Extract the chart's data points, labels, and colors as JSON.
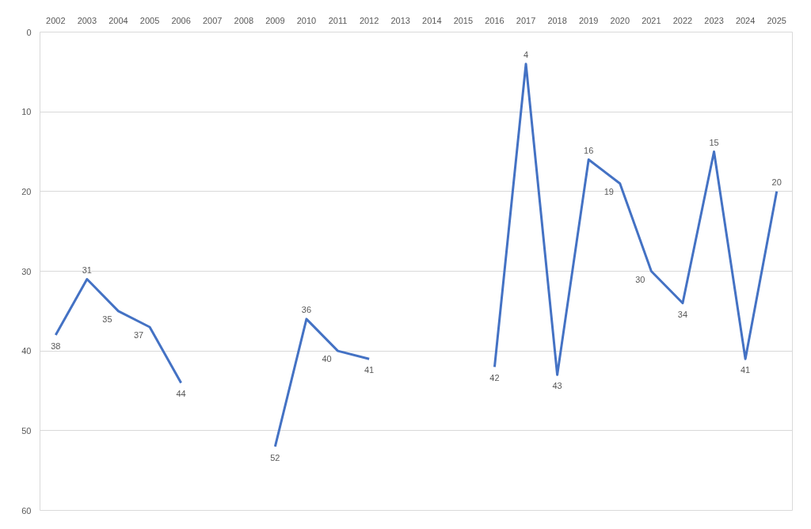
{
  "chart_data": {
    "type": "line",
    "categories": [
      "2002",
      "2003",
      "2004",
      "2005",
      "2006",
      "2007",
      "2008",
      "2009",
      "2010",
      "2011",
      "2012",
      "2013",
      "2014",
      "2015",
      "2016",
      "2017",
      "2018",
      "2019",
      "2020",
      "2021",
      "2022",
      "2023",
      "2024",
      "2025"
    ],
    "series": [
      {
        "color": "#4472c4",
        "values": [
          38,
          31,
          35,
          37,
          44,
          null,
          null,
          52,
          36,
          40,
          41,
          null,
          null,
          null,
          42,
          4,
          43,
          16,
          19,
          30,
          34,
          15,
          41,
          20
        ]
      }
    ],
    "ylim": [
      60,
      0
    ],
    "yticks": [
      0,
      10,
      20,
      30,
      40,
      50,
      60
    ],
    "grid": "y",
    "data_labels": true,
    "marker": "none",
    "line_style": "solid"
  }
}
